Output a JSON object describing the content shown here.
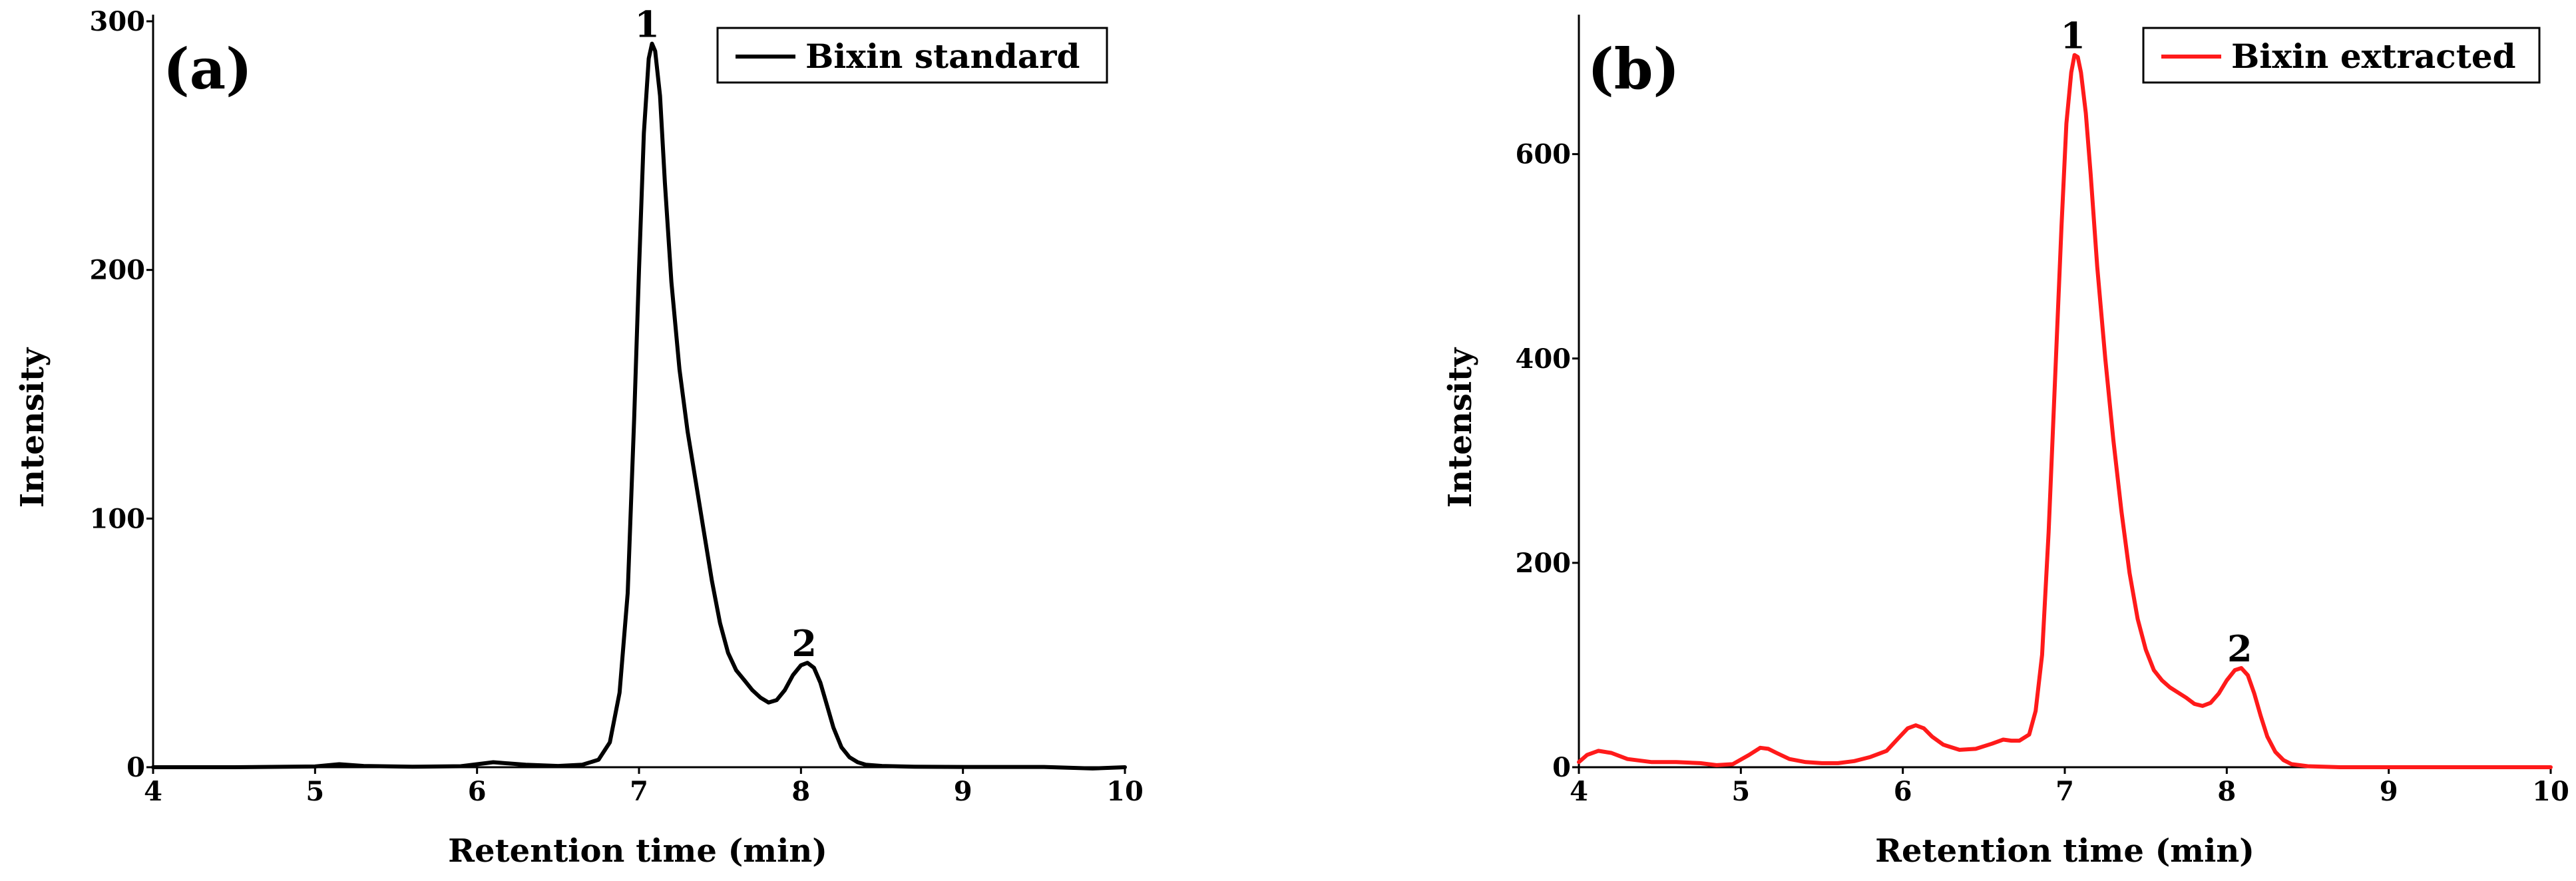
{
  "chart_data": [
    {
      "type": "line",
      "panel_label": "(a)",
      "xlabel": "Retention time (min)",
      "ylabel": "Intensity",
      "xlim": [
        4,
        10
      ],
      "ylim": [
        0,
        300
      ],
      "xticks": [
        "4",
        "5",
        "6",
        "7",
        "8",
        "9",
        "10"
      ],
      "yticks": [
        "0",
        "100",
        "200",
        "300"
      ],
      "grid": false,
      "legend": "top-right",
      "series": [
        {
          "name": "Bixin standard",
          "color": "#000000",
          "x": [
            4.0,
            4.5,
            5.0,
            5.15,
            5.3,
            5.6,
            5.9,
            6.1,
            6.3,
            6.5,
            6.65,
            6.75,
            6.82,
            6.88,
            6.93,
            6.97,
            7.0,
            7.03,
            7.06,
            7.08,
            7.1,
            7.13,
            7.16,
            7.2,
            7.25,
            7.3,
            7.35,
            7.4,
            7.45,
            7.5,
            7.55,
            7.6,
            7.65,
            7.7,
            7.75,
            7.8,
            7.85,
            7.9,
            7.95,
            8.0,
            8.04,
            8.08,
            8.12,
            8.16,
            8.2,
            8.25,
            8.3,
            8.35,
            8.4,
            8.5,
            8.7,
            9.0,
            9.5,
            9.8,
            10.0
          ],
          "y": [
            0,
            0,
            0.3,
            1.2,
            0.5,
            0.2,
            0.4,
            2.0,
            1.0,
            0.5,
            1.0,
            3.0,
            10.0,
            30.0,
            70.0,
            140.0,
            200.0,
            255.0,
            285.0,
            291.0,
            288.0,
            270.0,
            235.0,
            195.0,
            160.0,
            135.0,
            115.0,
            95.0,
            75.0,
            58.0,
            46.0,
            39.0,
            35.0,
            31.0,
            28.0,
            26.0,
            27.0,
            31.0,
            37.0,
            41.0,
            42.0,
            40.0,
            34.0,
            25.0,
            16.0,
            8.0,
            4.0,
            2.0,
            1.0,
            0.5,
            0.2,
            0.1,
            0.1,
            -0.5,
            0
          ]
        }
      ],
      "annotations": [
        {
          "text": "1",
          "x": 7.05,
          "y": 291
        },
        {
          "text": "2",
          "x": 8.02,
          "y": 42
        }
      ]
    },
    {
      "type": "line",
      "panel_label": "(b)",
      "xlabel": "Retention time (min)",
      "ylabel": "Intensity",
      "xlim": [
        4,
        10
      ],
      "ylim": [
        0,
        730
      ],
      "xticks": [
        "4",
        "5",
        "6",
        "7",
        "8",
        "9",
        "10"
      ],
      "yticks": [
        "0",
        "200",
        "400",
        "600"
      ],
      "grid": false,
      "legend": "top-right",
      "series": [
        {
          "name": "Bixin extracted",
          "color": "#ff1a1a",
          "x": [
            4.0,
            4.05,
            4.12,
            4.2,
            4.3,
            4.45,
            4.6,
            4.75,
            4.85,
            4.95,
            5.05,
            5.12,
            5.17,
            5.22,
            5.3,
            5.4,
            5.5,
            5.6,
            5.7,
            5.8,
            5.9,
            5.97,
            6.03,
            6.08,
            6.13,
            6.18,
            6.25,
            6.35,
            6.45,
            6.55,
            6.62,
            6.67,
            6.72,
            6.78,
            6.82,
            6.86,
            6.9,
            6.94,
            6.98,
            7.01,
            7.04,
            7.06,
            7.08,
            7.1,
            7.13,
            7.16,
            7.2,
            7.25,
            7.3,
            7.35,
            7.4,
            7.45,
            7.5,
            7.55,
            7.6,
            7.65,
            7.7,
            7.75,
            7.8,
            7.85,
            7.9,
            7.95,
            8.0,
            8.05,
            8.09,
            8.13,
            8.17,
            8.21,
            8.25,
            8.3,
            8.35,
            8.4,
            8.5,
            8.7,
            9.0,
            9.5,
            10.0
          ],
          "y": [
            5,
            12,
            16,
            14,
            8,
            5,
            5,
            4,
            2,
            3,
            12,
            19,
            18,
            14,
            8,
            5,
            4,
            4,
            6,
            10,
            16,
            28,
            38,
            41,
            38,
            30,
            22,
            17,
            18,
            23,
            27,
            26,
            26,
            32,
            55,
            110,
            230,
            380,
            530,
            630,
            680,
            697,
            695,
            680,
            640,
            580,
            490,
            400,
            320,
            250,
            190,
            145,
            115,
            95,
            85,
            78,
            73,
            68,
            62,
            60,
            63,
            72,
            85,
            95,
            97,
            90,
            72,
            50,
            30,
            15,
            7,
            3,
            1,
            0,
            0,
            0,
            0
          ]
        }
      ],
      "annotations": [
        {
          "text": "1",
          "x": 7.05,
          "y": 697
        },
        {
          "text": "2",
          "x": 8.08,
          "y": 97
        }
      ]
    }
  ]
}
